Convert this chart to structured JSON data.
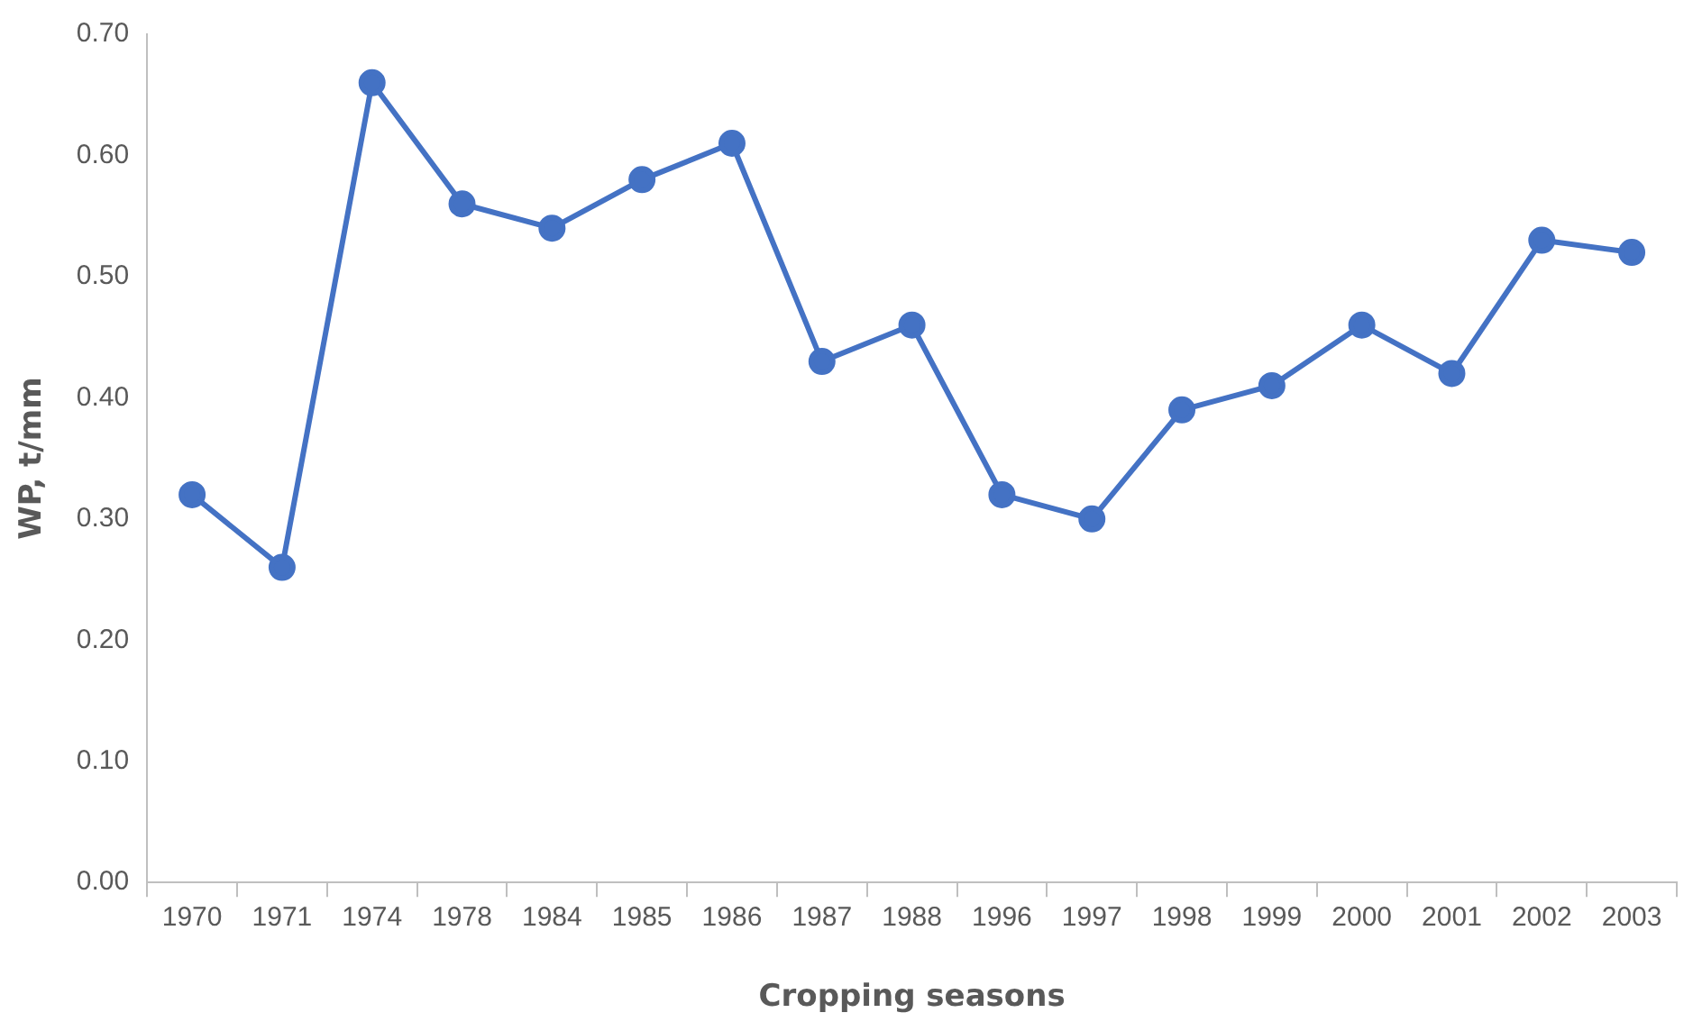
{
  "chart_data": {
    "type": "line",
    "xlabel": "Cropping seasons",
    "ylabel": "WP, t/mm",
    "categories": [
      "1970",
      "1971",
      "1974",
      "1978",
      "1984",
      "1985",
      "1986",
      "1987",
      "1988",
      "1996",
      "1997",
      "1998",
      "1999",
      "2000",
      "2001",
      "2002",
      "2003"
    ],
    "series": [
      {
        "color": "#4472c4",
        "values": [
          0.32,
          0.26,
          0.66,
          0.56,
          0.54,
          0.58,
          0.61,
          0.43,
          0.46,
          0.32,
          0.3,
          0.39,
          0.41,
          0.46,
          0.42,
          0.53,
          0.52
        ]
      }
    ],
    "ylim": [
      0,
      0.7
    ],
    "yticks": [
      {
        "value": 0,
        "label": "0.00"
      },
      {
        "value": 0.1,
        "label": "0.10"
      },
      {
        "value": 0.2,
        "label": "0.20"
      },
      {
        "value": 0.3,
        "label": "0.30"
      },
      {
        "value": 0.4,
        "label": "0.40"
      },
      {
        "value": 0.5,
        "label": "0.50"
      },
      {
        "value": 0.6,
        "label": "0.60"
      },
      {
        "value": 0.7,
        "label": "0.70"
      }
    ],
    "grid": false,
    "legend": false,
    "marker": "circle",
    "line_style": "solid"
  }
}
